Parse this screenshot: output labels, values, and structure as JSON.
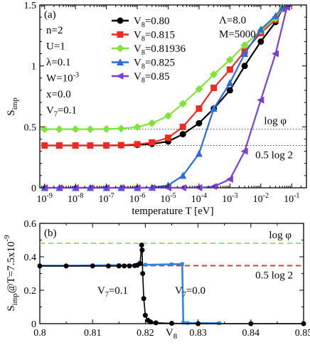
{
  "chart_data": [
    {
      "type": "line",
      "panel_label": "(a)",
      "xlabel": "temperature T [eV]",
      "ylabel_main": "S",
      "ylabel_sub": "imp",
      "x_scale": "log",
      "xlim": [
        7e-10,
        0.3
      ],
      "ylim": [
        0,
        1.5
      ],
      "x_tick_labels": [
        {
          "base": "10",
          "exp": "-9",
          "value": 1e-09
        },
        {
          "base": "10",
          "exp": "-8",
          "value": 1e-08
        },
        {
          "base": "10",
          "exp": "-7",
          "value": 1e-07
        },
        {
          "base": "10",
          "exp": "-6",
          "value": 1e-06
        },
        {
          "base": "10",
          "exp": "-5",
          "value": 1e-05
        },
        {
          "base": "10",
          "exp": "-4",
          "value": 0.0001
        },
        {
          "base": "10",
          "exp": "-3",
          "value": 0.001
        },
        {
          "base": "10",
          "exp": "-2",
          "value": 0.01
        },
        {
          "base": "10",
          "exp": "-1",
          "value": 0.1
        }
      ],
      "y_ticks": [
        0,
        0.5,
        1,
        1.5
      ],
      "y_tick_labels": [
        "0",
        "0.5",
        "1",
        "1.5"
      ],
      "params_left": [
        {
          "text": "n=2"
        },
        {
          "text": "U=1"
        },
        {
          "text": "λ=0.1"
        },
        {
          "text": "W=10",
          "sup": "-3"
        },
        {
          "text": "x=0.0"
        },
        {
          "text": "V",
          "sub": "7",
          "tail": "=0.1"
        }
      ],
      "params_right": [
        "Λ=8.0",
        "M=5000"
      ],
      "reference_lines": [
        {
          "label": "log φ",
          "y": 0.481
        },
        {
          "label": "0.5 log 2",
          "y": 0.347
        }
      ],
      "series": [
        {
          "name": "V8=0.80",
          "label_main": "V",
          "label_sub": "8",
          "label_tail": "=0.80",
          "color": "#000000",
          "marker": "circle",
          "x": [
            1e-09,
            3e-09,
            1e-08,
            3e-08,
            1e-07,
            3e-07,
            1e-06,
            3e-06,
            1e-05,
            3e-05,
            0.0001,
            0.0003,
            0.001,
            0.003,
            0.01,
            0.03,
            0.05
          ],
          "y": [
            0.347,
            0.347,
            0.347,
            0.347,
            0.347,
            0.348,
            0.352,
            0.36,
            0.38,
            0.44,
            0.53,
            0.65,
            0.8,
            1.0,
            1.2,
            1.36,
            1.47
          ]
        },
        {
          "name": "V8=0.815",
          "label_main": "V",
          "label_sub": "8",
          "label_tail": "=0.815",
          "color": "#ee2a24",
          "marker": "square",
          "x": [
            1e-09,
            3e-09,
            1e-08,
            3e-08,
            1e-07,
            3e-07,
            1e-06,
            3e-06,
            1e-05,
            3e-05,
            0.0001,
            0.0003,
            0.001,
            0.003,
            0.01,
            0.03,
            0.05
          ],
          "y": [
            0.347,
            0.347,
            0.347,
            0.347,
            0.348,
            0.35,
            0.357,
            0.372,
            0.41,
            0.5,
            0.65,
            0.82,
            0.97,
            1.12,
            1.27,
            1.38,
            1.47
          ]
        },
        {
          "name": "V8=0.81936",
          "label_main": "V",
          "label_sub": "8",
          "label_tail": "=0.81936",
          "color": "#7fe33a",
          "marker": "diamond",
          "x": [
            1e-09,
            3e-09,
            1e-08,
            3e-08,
            1e-07,
            3e-07,
            1e-06,
            3e-06,
            1e-05,
            3e-05,
            0.0001,
            0.0003,
            0.001,
            0.003,
            0.01,
            0.03,
            0.05
          ],
          "y": [
            0.481,
            0.481,
            0.481,
            0.481,
            0.482,
            0.486,
            0.498,
            0.53,
            0.59,
            0.69,
            0.81,
            0.93,
            1.05,
            1.17,
            1.29,
            1.39,
            1.48
          ]
        },
        {
          "name": "V8=0.825",
          "label_main": "V",
          "label_sub": "8",
          "label_tail": "=0.825",
          "color": "#2a6be0",
          "marker": "triangle-up",
          "x": [
            1e-09,
            3e-09,
            1e-08,
            3e-08,
            1e-07,
            3e-07,
            1e-06,
            3e-06,
            1e-05,
            3e-05,
            0.0001,
            0.0003,
            0.001,
            0.003,
            0.01,
            0.03,
            0.05
          ],
          "y": [
            0,
            0,
            0,
            0,
            0,
            0,
            0,
            0.002,
            0.02,
            0.1,
            0.28,
            0.65,
            0.86,
            1.1,
            1.3,
            1.41,
            1.48
          ]
        },
        {
          "name": "V8=0.85",
          "label_main": "V",
          "label_sub": "8",
          "label_tail": "=0.85",
          "color": "#7c3ed6",
          "marker": "triangle-left",
          "x": [
            1e-09,
            3e-09,
            1e-08,
            3e-08,
            1e-07,
            3e-07,
            1e-06,
            3e-06,
            1e-05,
            3e-05,
            0.0001,
            0.0003,
            0.001,
            0.003,
            0.01,
            0.03,
            0.07
          ],
          "y": [
            0,
            0,
            0,
            0,
            0,
            0,
            0,
            0,
            0,
            0,
            0.001,
            0.01,
            0.07,
            0.3,
            0.72,
            1.1,
            1.48
          ]
        }
      ]
    },
    {
      "type": "line",
      "panel_label": "(b)",
      "xlabel_main": "V",
      "xlabel_sub": "8",
      "ylabel_main": "S",
      "ylabel_sub": "imp",
      "ylabel_tail": "@T=7.5x10",
      "ylabel_sup": "-9",
      "xlim": [
        0.8,
        0.85
      ],
      "ylim": [
        0,
        0.6
      ],
      "x_ticks": [
        0.8,
        0.81,
        0.82,
        0.83,
        0.84,
        0.85
      ],
      "x_tick_labels": [
        "0.8",
        "0.81",
        "0.82",
        "0.83",
        "0.84",
        "0.85"
      ],
      "y_ticks": [
        0,
        0.2,
        0.4,
        0.6
      ],
      "y_tick_labels": [
        "0",
        "0.2",
        "0.4",
        "0.6"
      ],
      "reference_lines": [
        {
          "label": "log φ",
          "y": 0.481,
          "color": "#8fe04a"
        },
        {
          "label": "0.5 log 2",
          "y": 0.347,
          "color": "#ee2a24"
        }
      ],
      "curve_labels": [
        {
          "main": "V",
          "sub": "7",
          "tail": "=0.1"
        },
        {
          "main": "V",
          "sub": "7",
          "tail": "=0.0"
        }
      ],
      "series": [
        {
          "name": "V7=0.1",
          "color": "#000000",
          "marker": "circle",
          "x": [
            0.8,
            0.805,
            0.81,
            0.813,
            0.815,
            0.816,
            0.817,
            0.818,
            0.8185,
            0.819,
            0.8193,
            0.8194,
            0.8195,
            0.8197,
            0.82,
            0.8205,
            0.821,
            0.822,
            0.825,
            0.83,
            0.84,
            0.85
          ],
          "y": [
            0.345,
            0.345,
            0.345,
            0.345,
            0.345,
            0.345,
            0.345,
            0.347,
            0.35,
            0.36,
            0.47,
            0.44,
            0.3,
            0.15,
            0.05,
            0.02,
            0.01,
            0.005,
            0.002,
            0.0,
            0.0,
            0.0
          ]
        },
        {
          "name": "V7=0.0",
          "color": "#2f86e0",
          "marker": "square",
          "x": [
            0.8,
            0.805,
            0.81,
            0.815,
            0.82,
            0.825,
            0.827,
            0.8272,
            0.828,
            0.83,
            0.834
          ],
          "y": [
            0.347,
            0.347,
            0.348,
            0.35,
            0.352,
            0.355,
            0.357,
            0.005,
            0.004,
            0.003,
            0.003
          ]
        }
      ]
    }
  ]
}
